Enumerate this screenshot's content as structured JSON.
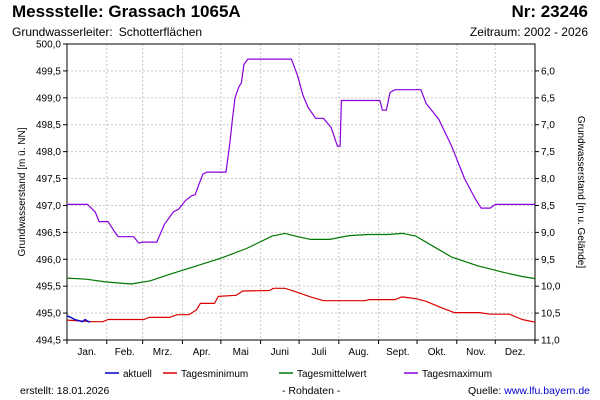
{
  "header": {
    "title": "Messstelle: Grassach 1065A",
    "station_number": "Nr: 23246",
    "aquifer_label": "Grundwasserleiter:",
    "aquifer_value": "Schotterflächen",
    "period": "Zeitraum: 2002 - 2026"
  },
  "footer": {
    "created_label": "erstellt:",
    "created_date": "18.01.2026",
    "raw_data_note": "- Rohdaten -",
    "source_label": "Quelle:",
    "source_link": "www.lfu.bayern.de"
  },
  "colors": {
    "aktuell": "#0000cc",
    "min": "#dd0000",
    "mean": "#007700",
    "max": "#8800dd",
    "grid": "#c8c8c8"
  },
  "chart_data": {
    "type": "line",
    "ylabel_left": "Grundwasserstand [m ü. NN]",
    "ylabel_right": "Grundwasserstand [m u. Gelände]",
    "ylim": [
      494.5,
      500.0
    ],
    "yticks": [
      "494,5",
      "495,0",
      "495,5",
      "496,0",
      "496,5",
      "497,0",
      "497,5",
      "498,0",
      "498,5",
      "499,0",
      "499,5",
      "500,0"
    ],
    "ylim_right": [
      11.0,
      5.5
    ],
    "yticks_right": [
      "6,0",
      "6,5",
      "7,0",
      "7,5",
      "8,0",
      "8,5",
      "9,0",
      "9,5",
      "10,0",
      "10,5",
      "11,0"
    ],
    "xlim": [
      0,
      365
    ],
    "month_labels": [
      "Jan.",
      "Feb.",
      "Mrz.",
      "Apr.",
      "Mai",
      "Juni",
      "Juli",
      "Aug.",
      "Sept.",
      "Okt.",
      "Nov.",
      "Dez."
    ],
    "grid": true,
    "legend_position": "bottom",
    "series": [
      {
        "name": "aktuell",
        "key": "aktuell",
        "points": [
          [
            0,
            494.95
          ],
          [
            3,
            494.92
          ],
          [
            6,
            494.88
          ],
          [
            9,
            494.86
          ],
          [
            12,
            494.84
          ],
          [
            14,
            494.88
          ],
          [
            16,
            494.85
          ],
          [
            18,
            494.83
          ]
        ]
      },
      {
        "name": "Tagesminimum",
        "key": "min",
        "points": [
          [
            0,
            494.87
          ],
          [
            20,
            494.84
          ],
          [
            28,
            494.84
          ],
          [
            32,
            494.88
          ],
          [
            60,
            494.88
          ],
          [
            64,
            494.92
          ],
          [
            80,
            494.92
          ],
          [
            86,
            494.97
          ],
          [
            95,
            494.97
          ],
          [
            101,
            495.06
          ],
          [
            104,
            495.18
          ],
          [
            115,
            495.18
          ],
          [
            118,
            495.31
          ],
          [
            132,
            495.33
          ],
          [
            137,
            495.41
          ],
          [
            158,
            495.42
          ],
          [
            161,
            495.46
          ],
          [
            170,
            495.46
          ],
          [
            178,
            495.4
          ],
          [
            190,
            495.3
          ],
          [
            200,
            495.23
          ],
          [
            232,
            495.23
          ],
          [
            236,
            495.25
          ],
          [
            256,
            495.25
          ],
          [
            261,
            495.3
          ],
          [
            272,
            495.27
          ],
          [
            280,
            495.22
          ],
          [
            292,
            495.1
          ],
          [
            302,
            495.01
          ],
          [
            322,
            495.01
          ],
          [
            330,
            494.98
          ],
          [
            345,
            494.98
          ],
          [
            355,
            494.88
          ],
          [
            365,
            494.83
          ]
        ]
      },
      {
        "name": "Tagesmittelwert",
        "key": "mean",
        "points": [
          [
            0,
            495.65
          ],
          [
            15,
            495.63
          ],
          [
            30,
            495.58
          ],
          [
            50,
            495.54
          ],
          [
            65,
            495.6
          ],
          [
            80,
            495.72
          ],
          [
            100,
            495.87
          ],
          [
            120,
            496.02
          ],
          [
            140,
            496.2
          ],
          [
            160,
            496.43
          ],
          [
            170,
            496.48
          ],
          [
            180,
            496.42
          ],
          [
            190,
            496.37
          ],
          [
            205,
            496.37
          ],
          [
            220,
            496.44
          ],
          [
            235,
            496.46
          ],
          [
            250,
            496.46
          ],
          [
            262,
            496.48
          ],
          [
            272,
            496.43
          ],
          [
            285,
            496.25
          ],
          [
            300,
            496.04
          ],
          [
            320,
            495.88
          ],
          [
            340,
            495.76
          ],
          [
            355,
            495.68
          ],
          [
            365,
            495.64
          ]
        ]
      },
      {
        "name": "Tagesmaximum",
        "key": "max",
        "points": [
          [
            0,
            497.02
          ],
          [
            16,
            497.02
          ],
          [
            22,
            496.88
          ],
          [
            25,
            496.7
          ],
          [
            32,
            496.7
          ],
          [
            38,
            496.48
          ],
          [
            40,
            496.42
          ],
          [
            52,
            496.42
          ],
          [
            56,
            496.3
          ],
          [
            59,
            496.32
          ],
          [
            70,
            496.32
          ],
          [
            76,
            496.65
          ],
          [
            83,
            496.88
          ],
          [
            87,
            496.93
          ],
          [
            92,
            497.08
          ],
          [
            97,
            497.18
          ],
          [
            100,
            497.2
          ],
          [
            103,
            497.4
          ],
          [
            106,
            497.58
          ],
          [
            109,
            497.62
          ],
          [
            124,
            497.62
          ],
          [
            127,
            498.15
          ],
          [
            129,
            498.6
          ],
          [
            131,
            499.0
          ],
          [
            134,
            499.2
          ],
          [
            136,
            499.28
          ],
          [
            138,
            499.62
          ],
          [
            141,
            499.72
          ],
          [
            175,
            499.72
          ],
          [
            180,
            499.4
          ],
          [
            184,
            499.05
          ],
          [
            188,
            498.82
          ],
          [
            194,
            498.62
          ],
          [
            200,
            498.62
          ],
          [
            206,
            498.45
          ],
          [
            211,
            498.1
          ],
          [
            213,
            498.1
          ],
          [
            214,
            498.95
          ],
          [
            244,
            498.95
          ],
          [
            246,
            498.77
          ],
          [
            249,
            498.77
          ],
          [
            252,
            499.1
          ],
          [
            256,
            499.15
          ],
          [
            276,
            499.15
          ],
          [
            280,
            498.9
          ],
          [
            290,
            498.6
          ],
          [
            300,
            498.1
          ],
          [
            310,
            497.5
          ],
          [
            319,
            497.1
          ],
          [
            323,
            496.95
          ],
          [
            330,
            496.95
          ],
          [
            334,
            497.02
          ],
          [
            365,
            497.02
          ]
        ]
      }
    ]
  }
}
